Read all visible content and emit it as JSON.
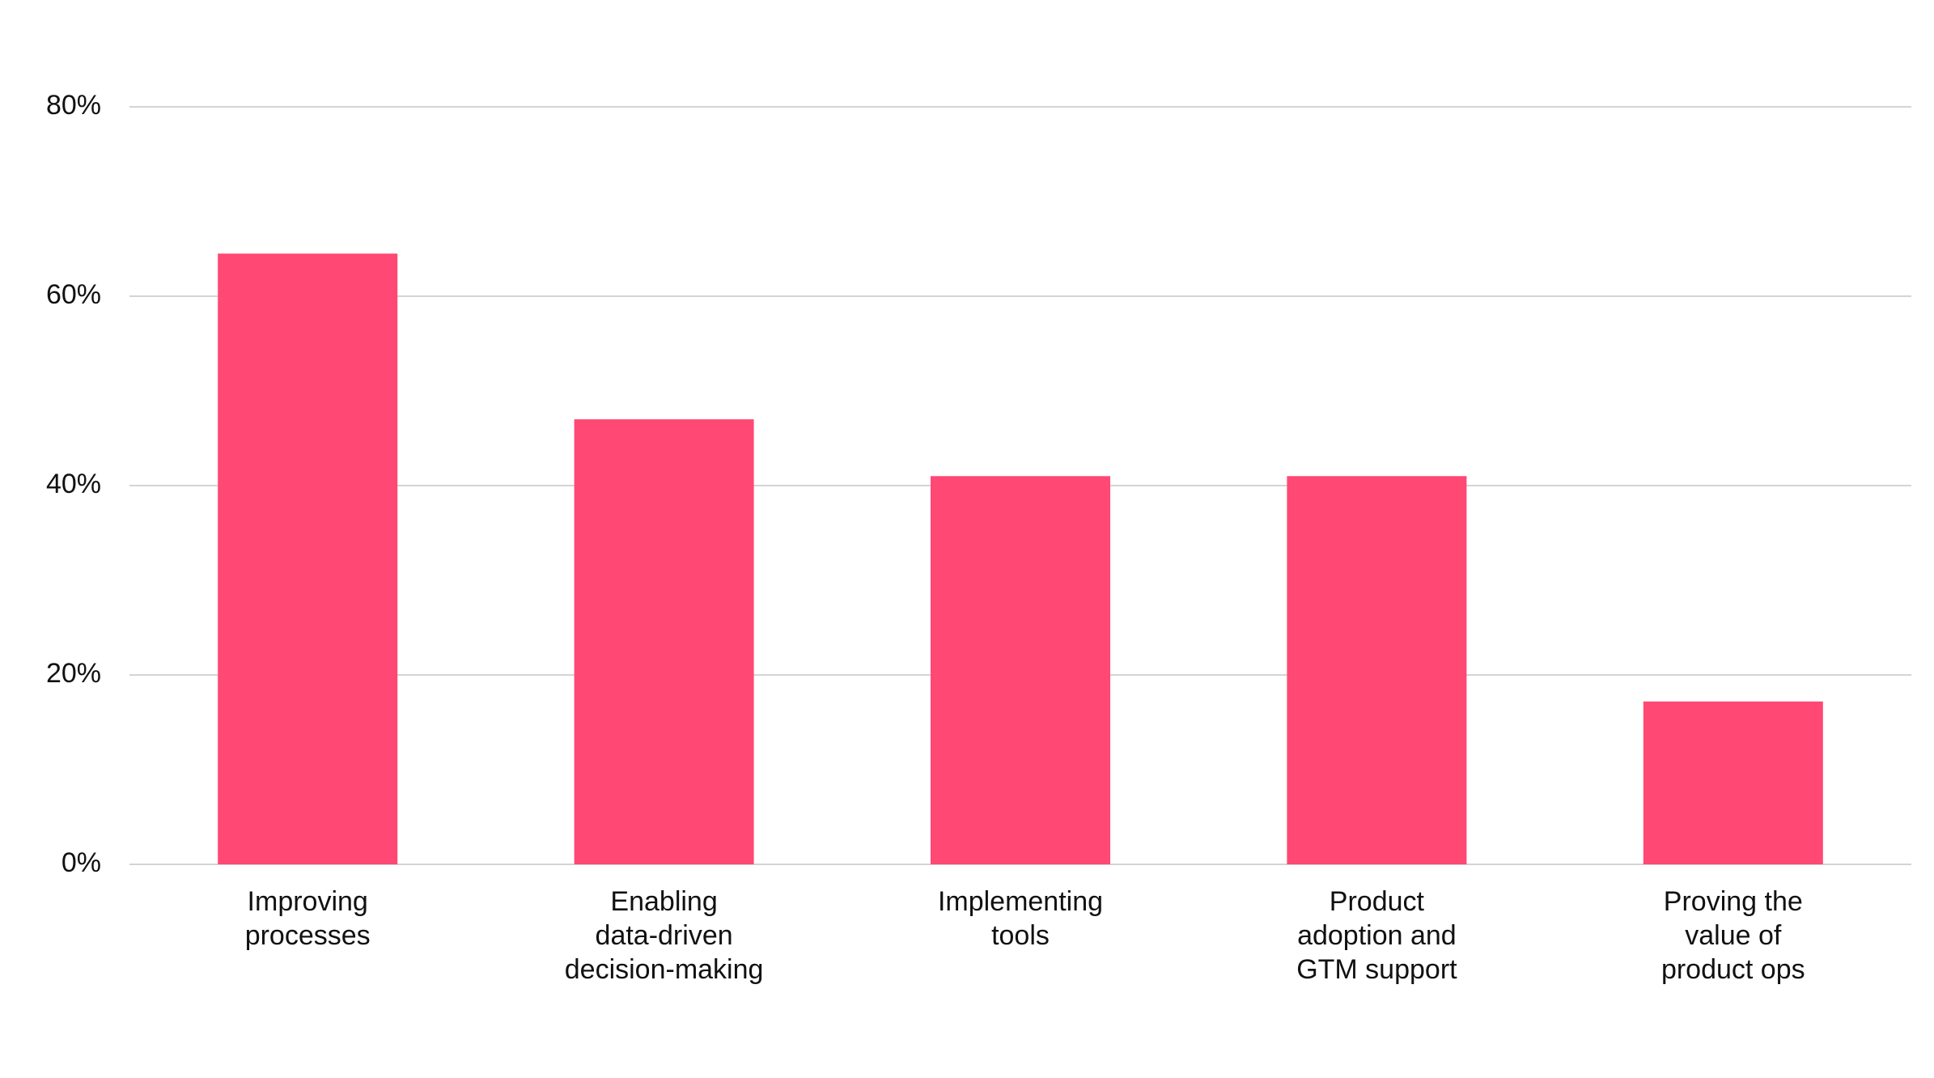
{
  "chart_data": {
    "type": "bar",
    "title": "",
    "xlabel": "",
    "ylabel": "",
    "categories": [
      [
        "Improving",
        "processes"
      ],
      [
        "Enabling",
        "data-driven",
        "decision-making"
      ],
      [
        "Implementing",
        "tools"
      ],
      [
        "Product",
        "adoption and",
        "GTM support"
      ],
      [
        "Proving the",
        "value of",
        "product ops"
      ]
    ],
    "values": [
      64.5,
      47,
      41,
      41,
      17.2
    ],
    "ylim": [
      0,
      80
    ],
    "yticks": [
      0,
      20,
      40,
      60,
      80
    ],
    "ytick_labels": [
      "0%",
      "20%",
      "40%",
      "60%",
      "80%"
    ],
    "grid": true,
    "legend": "none",
    "bar_color": "#ff4874",
    "grid_color": "#d4d4d4"
  }
}
